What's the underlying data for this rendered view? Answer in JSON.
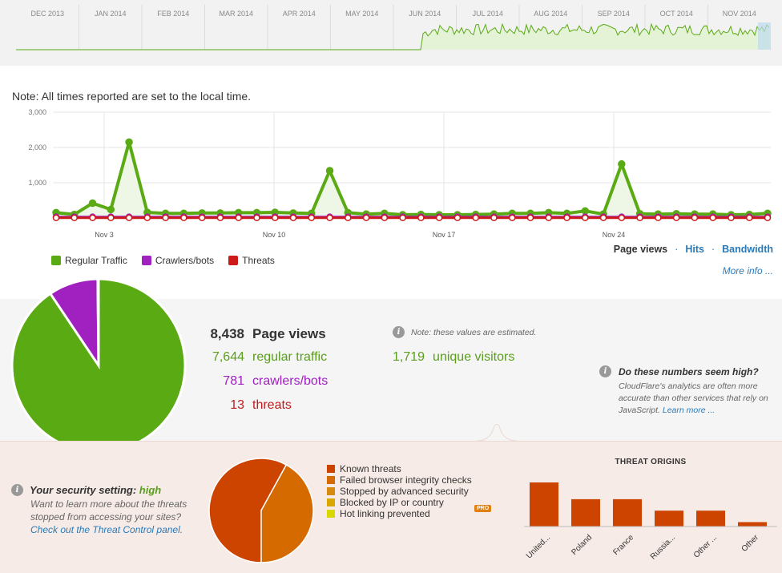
{
  "overview": {
    "months": [
      "DEC 2013",
      "JAN 2014",
      "FEB 2014",
      "MAR 2014",
      "APR 2014",
      "MAY 2014",
      "JUN 2014",
      "JUL 2014",
      "AUG 2014",
      "SEP 2014",
      "OCT 2014",
      "NOV 2014"
    ]
  },
  "note": "Note: All times reported are set to the local time.",
  "chart_data": [
    {
      "type": "line",
      "x_ticks": [
        "Nov 3",
        "Nov 10",
        "Nov 17",
        "Nov 24"
      ],
      "y_ticks": [
        "3,000",
        "2,000",
        "1,000"
      ],
      "ylim": [
        0,
        3000
      ],
      "series": [
        {
          "name": "Regular Traffic",
          "color": "#5aaa14",
          "values": [
            150,
            100,
            420,
            240,
            2150,
            160,
            130,
            130,
            140,
            140,
            150,
            150,
            160,
            140,
            130,
            1340,
            150,
            110,
            130,
            90,
            100,
            90,
            90,
            100,
            110,
            130,
            130,
            150,
            130,
            200,
            110,
            1530,
            120,
            110,
            120,
            110,
            110,
            90,
            100,
            130
          ]
        },
        {
          "name": "Crawlers/bots",
          "color": "#a020c0",
          "values": [
            30,
            30,
            30,
            30,
            30,
            30,
            30,
            30,
            30,
            30,
            30,
            30,
            30,
            30,
            30,
            30,
            30,
            30,
            30,
            30,
            30,
            30,
            30,
            30,
            30,
            30,
            30,
            30,
            30,
            30,
            30,
            30,
            30,
            30,
            30,
            30,
            30,
            30,
            30,
            30
          ]
        },
        {
          "name": "Threats",
          "color": "#cc1a1a",
          "values": [
            5,
            5,
            5,
            5,
            5,
            5,
            5,
            5,
            5,
            5,
            5,
            5,
            5,
            5,
            5,
            5,
            5,
            5,
            5,
            5,
            5,
            5,
            5,
            5,
            5,
            5,
            5,
            5,
            5,
            5,
            5,
            5,
            5,
            5,
            5,
            5,
            5,
            5,
            5,
            5
          ]
        }
      ]
    },
    {
      "type": "pie",
      "name": "traffic-breakdown",
      "labels": [
        "regular traffic",
        "crawlers/bots",
        "threats"
      ],
      "values": [
        7644,
        781,
        13
      ],
      "colors": [
        "#5aaa14",
        "#a020c0",
        "#cc1a1a"
      ]
    },
    {
      "type": "pie",
      "name": "threat-types",
      "labels": [
        "Known threats",
        "Failed browser integrity checks",
        "Stopped by advanced security",
        "Blocked by IP or country",
        "Hot linking prevented"
      ],
      "values": [
        58,
        42,
        0,
        0,
        0
      ],
      "colors": [
        "#cc4400",
        "#d46a00",
        "#d88a10",
        "#d8a800",
        "#d8d800"
      ]
    },
    {
      "type": "bar",
      "title": "THREAT ORIGINS",
      "categories": [
        "United...",
        "Poland",
        "France",
        "Russia...",
        "Other ...",
        "Other"
      ],
      "values": [
        5,
        3.1,
        3.1,
        1.8,
        1.8,
        0.5
      ],
      "color": "#cc4400"
    }
  ],
  "tabs": {
    "pageviews": "Page views",
    "hits": "Hits",
    "bandwidth": "Bandwidth"
  },
  "more_info": "More info ...",
  "legend": [
    {
      "label": "Regular Traffic",
      "color": "#5aaa14"
    },
    {
      "label": "Crawlers/bots",
      "color": "#a020c0"
    },
    {
      "label": "Threats",
      "color": "#cc1a1a"
    }
  ],
  "stats": {
    "pageviews": {
      "num": "8,438",
      "label": "Page views"
    },
    "regular": {
      "num": "7,644",
      "label": "regular traffic"
    },
    "crawlers": {
      "num": "781",
      "label": "crawlers/bots"
    },
    "threats": {
      "num": "13",
      "label": "threats"
    },
    "unique": {
      "num": "1,719",
      "label": "unique visitors"
    },
    "estimate_note": "Note: these values are estimated."
  },
  "numbers_box": {
    "question": "Do these numbers seem high?",
    "answer": "CloudFlare's analytics are often more accurate than other services that rely on JavaScript.",
    "link": "Learn more ..."
  },
  "security": {
    "question_prefix": "Your security setting:",
    "level": "high",
    "answer": "Want to learn more about the threats stopped from accessing your sites?",
    "link": "Check out the Threat Control panel."
  },
  "threat_legend": [
    {
      "label": "Known threats",
      "color": "#cc4400"
    },
    {
      "label": "Failed browser integrity checks",
      "color": "#d46a00"
    },
    {
      "label": "Stopped by advanced security",
      "color": "#d88a10"
    },
    {
      "label": "Blocked by IP or country",
      "color": "#d8a800"
    },
    {
      "label": "Hot linking prevented",
      "color": "#d8d800"
    }
  ],
  "pro_badge": "PRO",
  "origins_title": "THREAT ORIGINS"
}
